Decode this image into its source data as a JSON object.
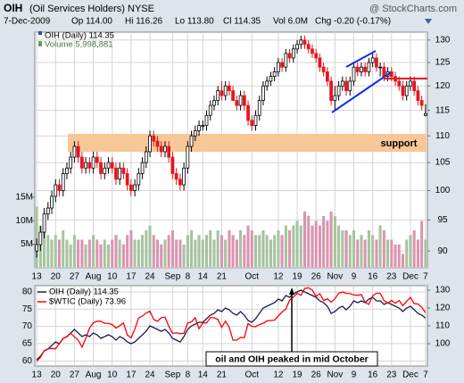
{
  "chart_data": [
    {
      "type": "candlestick",
      "title": "OIH",
      "subtitle": "(Oil Services Holders) NYSE",
      "source": "@ StockCharts.com",
      "date": "7-Dec-2009",
      "stats": [
        "Op 114.00",
        "Hi 116.26",
        "Lo 113.80",
        "Cl 114.35",
        "Vol 6.0M",
        "Chg -0.20 (-0.17%)"
      ],
      "categories": [
        "13",
        null,
        null,
        null,
        null,
        "20",
        null,
        null,
        null,
        null,
        "27",
        null,
        null,
        null,
        null,
        "Aug",
        null,
        null,
        null,
        null,
        "10",
        null,
        null,
        null,
        null,
        "17",
        null,
        null,
        null,
        null,
        "24",
        null,
        null,
        null,
        null,
        null,
        "Sep",
        null,
        null,
        null,
        "8",
        null,
        null,
        null,
        "14",
        null,
        null,
        null,
        null,
        "21",
        null,
        null,
        null,
        null,
        null,
        null,
        null,
        "Oct",
        null,
        null,
        null,
        null,
        null,
        null,
        "12",
        null,
        null,
        null,
        null,
        "19",
        null,
        null,
        null,
        null,
        "26",
        null,
        null,
        null,
        null,
        "Nov",
        null,
        null,
        null,
        null,
        "9",
        null,
        null,
        null,
        null,
        "16",
        null,
        null,
        null,
        null,
        "23",
        null,
        null,
        null,
        null,
        "Dec",
        null,
        null,
        null,
        "7"
      ],
      "series": [
        {
          "name": "OIH (Daily) 114.35",
          "up_color": "#000000",
          "down_color": "#e8141e",
          "open": [
            90,
            91,
            93,
            96,
            97,
            99,
            101,
            100,
            103,
            104,
            106,
            108,
            106,
            104,
            105,
            104,
            106,
            105,
            103,
            104,
            105,
            104,
            102,
            104,
            103,
            101,
            100,
            101,
            103,
            105,
            107,
            110,
            109,
            108,
            107,
            108,
            106,
            103,
            102,
            101,
            104,
            108,
            110,
            111,
            112,
            112,
            114,
            116,
            117,
            119,
            118,
            120,
            119,
            117,
            116,
            118,
            116,
            113,
            112,
            114,
            117,
            120,
            121,
            122,
            123,
            125,
            124,
            127,
            126,
            128,
            129,
            130,
            129,
            128,
            127,
            126,
            124,
            123,
            121,
            117,
            118,
            120,
            121,
            119,
            121,
            124,
            123,
            124,
            123,
            125,
            126,
            124,
            124,
            122,
            123,
            122,
            121,
            120,
            118,
            120,
            121,
            119,
            117,
            114.0
          ],
          "high": [
            92,
            94,
            97,
            98,
            100,
            102,
            102,
            104,
            105,
            107,
            109,
            109,
            107,
            106,
            106,
            107,
            107,
            106,
            105,
            106,
            106,
            105,
            105,
            105,
            104,
            102,
            102,
            104,
            106,
            108,
            111,
            111,
            110,
            109,
            109,
            109,
            107,
            104,
            103,
            105,
            109,
            111,
            112,
            113,
            113,
            115,
            117,
            118,
            120,
            121,
            121,
            121,
            120,
            118,
            119,
            119,
            117,
            114,
            115,
            118,
            121,
            122,
            123,
            124,
            126,
            126,
            128,
            128,
            129,
            130,
            131,
            131,
            130,
            129,
            128,
            127,
            125,
            124,
            122,
            120,
            121,
            122,
            122,
            122,
            125,
            125,
            125,
            125,
            126,
            127,
            127,
            125,
            125,
            124,
            124,
            123,
            122,
            121,
            121,
            122,
            122,
            120,
            118,
            116.26
          ],
          "low": [
            89,
            90,
            92,
            95,
            96,
            98,
            99,
            99,
            102,
            103,
            105,
            105,
            103,
            103,
            103,
            103,
            104,
            102,
            102,
            103,
            103,
            101,
            101,
            102,
            100,
            99,
            99,
            100,
            102,
            104,
            106,
            108,
            107,
            106,
            106,
            105,
            102,
            101,
            100,
            100,
            103,
            107,
            109,
            110,
            111,
            111,
            113,
            115,
            116,
            117,
            117,
            118,
            117,
            115,
            115,
            115,
            112,
            111,
            111,
            113,
            116,
            119,
            120,
            121,
            122,
            123,
            123,
            125,
            125,
            127,
            128,
            128,
            127,
            126,
            125,
            123,
            122,
            120,
            116,
            115,
            117,
            119,
            118,
            118,
            120,
            122,
            122,
            122,
            122,
            124,
            123,
            122,
            121,
            121,
            121,
            120,
            119,
            117,
            117,
            119,
            118,
            116,
            115,
            113.8
          ],
          "close": [
            91,
            93,
            96,
            97,
            99,
            101,
            100,
            103,
            104,
            106,
            108,
            106,
            104,
            105,
            104,
            106,
            105,
            103,
            104,
            105,
            104,
            102,
            104,
            103,
            101,
            100,
            101,
            103,
            105,
            107,
            110,
            109,
            108,
            107,
            108,
            106,
            103,
            102,
            101,
            104,
            108,
            110,
            111,
            112,
            112,
            114,
            116,
            117,
            119,
            118,
            120,
            119,
            117,
            116,
            118,
            116,
            113,
            112,
            114,
            117,
            120,
            121,
            122,
            123,
            125,
            124,
            127,
            126,
            128,
            129,
            130,
            129,
            128,
            127,
            126,
            124,
            123,
            121,
            117,
            118,
            120,
            121,
            119,
            121,
            124,
            123,
            124,
            123,
            125,
            126,
            124,
            124,
            122,
            123,
            122,
            121,
            120,
            118,
            120,
            121,
            119,
            117,
            116,
            114.35
          ]
        },
        {
          "name": "Volume 5,998,881",
          "axis": "y2",
          "up_color": "#a6c3a0",
          "down_color": "#d995b0",
          "values": [
            13,
            9,
            8,
            7,
            6,
            7,
            6,
            8,
            6,
            5,
            7,
            6,
            6,
            5,
            6,
            7,
            6,
            5,
            6,
            5,
            6,
            7,
            6,
            5,
            7,
            8,
            6,
            6,
            7,
            8,
            9,
            7,
            6,
            5,
            6,
            7,
            8,
            6,
            6,
            5,
            7,
            8,
            6,
            7,
            6,
            7,
            8,
            6,
            8,
            7,
            6,
            8,
            7,
            6,
            8,
            7,
            9,
            8,
            7,
            7,
            8,
            7,
            6,
            7,
            8,
            7,
            9,
            8,
            9,
            10,
            9,
            12,
            11,
            9,
            10,
            9,
            11,
            10,
            12,
            11,
            9,
            8,
            8,
            7,
            8,
            6,
            7,
            6,
            8,
            7,
            6,
            9,
            8,
            6,
            6,
            5,
            5,
            3,
            6,
            7,
            8,
            6,
            10,
            5.998881
          ]
        }
      ],
      "log_scale": true,
      "ylim": [
        87.4,
        131.8
      ],
      "yticks": [
        90,
        95,
        100,
        105,
        110,
        115,
        120,
        125,
        130
      ],
      "y2lim": [
        0,
        50
      ],
      "y2ticks": [
        {
          "value": 5,
          "label": "5M"
        },
        {
          "value": 10,
          "label": "10M"
        },
        {
          "value": 15,
          "label": "15M"
        }
      ],
      "grid": true,
      "annotations": [
        "support"
      ]
    },
    {
      "type": "line",
      "series": [
        {
          "name": "OIH (Daily) 114.35",
          "color": "#1c1c50",
          "axis": "y2"
        },
        {
          "name": "$WTIC (Daily) 73.96",
          "color": "#ff0000",
          "values": [
            59.9,
            61,
            63,
            63.5,
            63.6,
            63.5,
            65,
            66.5,
            67,
            68,
            67,
            66,
            64,
            66.5,
            69.5,
            71,
            71.5,
            71.5,
            70.9,
            70.9,
            70.5,
            69.5,
            70.2,
            71,
            67.5,
            66.7,
            69.2,
            72.4,
            73,
            73.9,
            74.4,
            72,
            71.5,
            72.5,
            72.7,
            70,
            68,
            68.1,
            67.9,
            68,
            71,
            71.3,
            72.5,
            69.3,
            71,
            71,
            72.5,
            72.5,
            72,
            69.7,
            71.5,
            69.7,
            66,
            66,
            66.8,
            66.7,
            70.8,
            70,
            69.9,
            70.5,
            70.9,
            71.6,
            71.7,
            71.8,
            73,
            74.2,
            75,
            77.6,
            78.5,
            79.6,
            79,
            81,
            81.2,
            80.5,
            78.7,
            79.5,
            77.5,
            78,
            77,
            78,
            79.6,
            80,
            79.6,
            79.5,
            79.1,
            79,
            79.2,
            76.9,
            76.4,
            78.9,
            79.6,
            79.6,
            77.5,
            76.7,
            77.5,
            76.7,
            77.5,
            76,
            77.3,
            78.4,
            76.6,
            76.5,
            75.5,
            73.96
          ]
        }
      ],
      "ylim": [
        58.5,
        81.8
      ],
      "yticks": [
        60,
        65,
        70,
        75,
        80
      ],
      "y2lim": [
        87.5,
        132.5
      ],
      "y2ticks": [
        100,
        110,
        120,
        130
      ],
      "grid": true,
      "annotations": [
        "oil and OIH peaked in mid October"
      ]
    }
  ]
}
